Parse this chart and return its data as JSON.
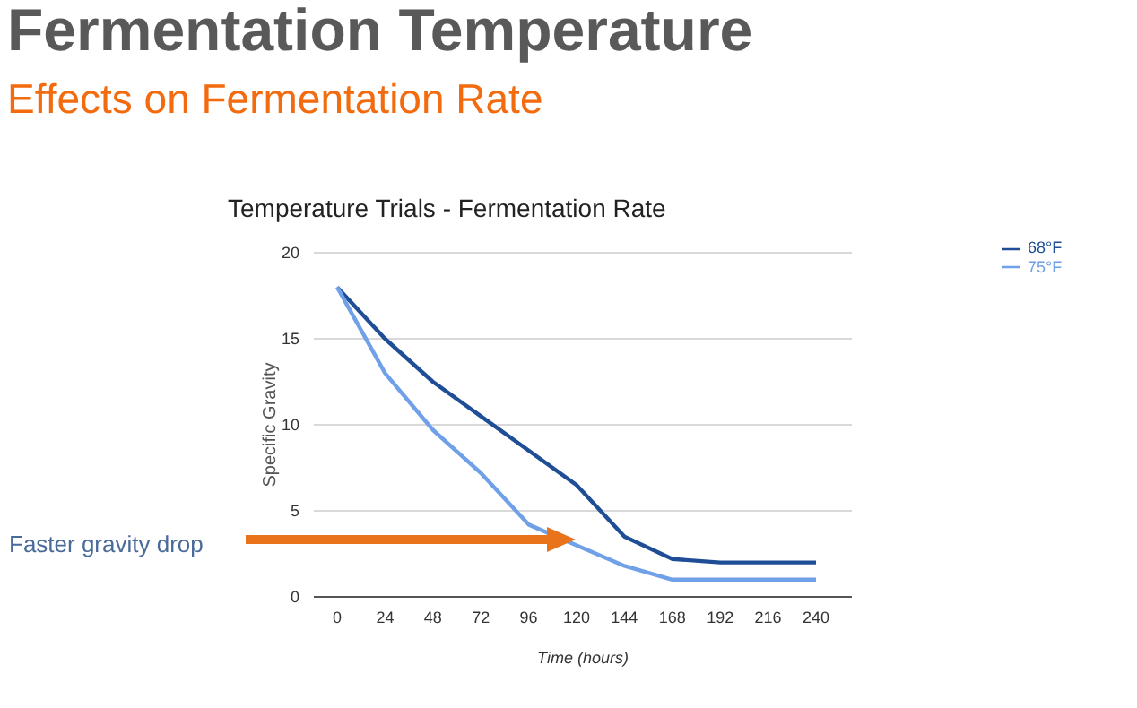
{
  "chart_data": {
    "type": "line",
    "title": "Fermentation Temperature",
    "subtitle": "Effects on Fermentation Rate",
    "xlabel": "Time (hours)",
    "ylabel": "Specific Gravity",
    "annotations": [
      "Temperature Trials - Fermentation Rate",
      "Faster gravity drop"
    ],
    "categories": [
      "0",
      "24",
      "48",
      "72",
      "96",
      "120",
      "144",
      "168",
      "192",
      "216",
      "240"
    ],
    "series": [
      {
        "name": "68°F",
        "color": "#1f4e96",
        "values": [
          18,
          15,
          12.5,
          10.5,
          8.5,
          6.5,
          3.5,
          2.2,
          2,
          2,
          2
        ]
      },
      {
        "name": "75°F",
        "color": "#6fa0e8",
        "values": [
          18,
          13,
          9.7,
          7.2,
          4.2,
          3,
          1.8,
          1,
          1,
          1,
          1
        ]
      }
    ],
    "ylim": [
      0,
      20
    ],
    "yticks": [
      0,
      5,
      10,
      15,
      20
    ],
    "grid": "y",
    "legend": "top right",
    "marker": "none",
    "line_style": "solid"
  }
}
